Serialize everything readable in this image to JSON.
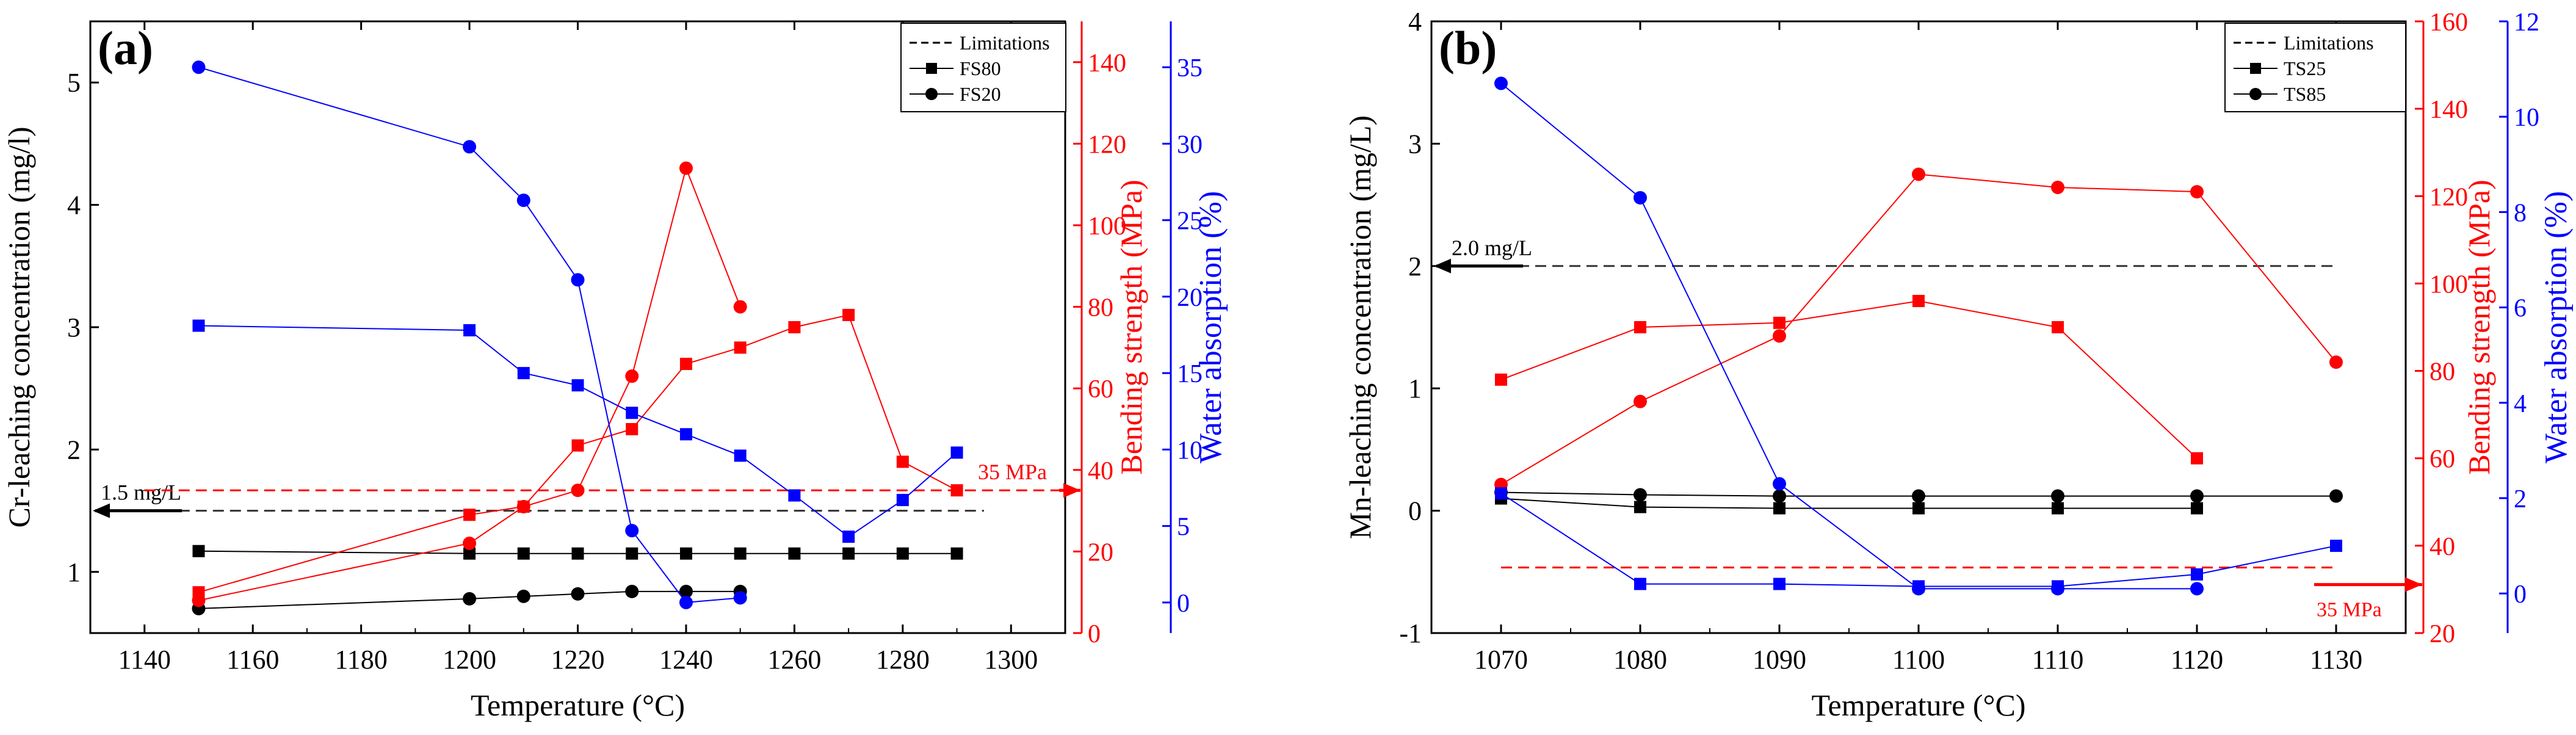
{
  "chart_data": [
    {
      "type": "line",
      "panel_label": "(a)",
      "xlabel": "Temperature (°C)",
      "ylabel": "Cr-leaching concentration (mg/l)",
      "ylabel_right1": "Bending strength (MPa)",
      "ylabel_right2": "Water absorption (%)",
      "xlim": [
        1130,
        1310
      ],
      "xticks": [
        "1140",
        "1160",
        "1180",
        "1200",
        "1220",
        "1240",
        "1260",
        "1280",
        "1300"
      ],
      "ylim": [
        0.5,
        5.5
      ],
      "yticks": [
        "1",
        "2",
        "3",
        "4",
        "5"
      ],
      "y2lim": [
        0,
        150
      ],
      "y2ticks": [
        "0",
        "20",
        "40",
        "60",
        "80",
        "100",
        "120",
        "140"
      ],
      "y3lim": [
        -2,
        38
      ],
      "y3ticks": [
        "0",
        "5",
        "10",
        "15",
        "20",
        "25",
        "30",
        "35"
      ],
      "limit_value": 1.5,
      "limit_label": "1.5 mg/L",
      "strength_limit_value": 35,
      "strength_limit_label": "35 MPa",
      "legend": [
        "Limitations",
        "FS80",
        "FS20"
      ],
      "series": [
        {
          "name": "FS80",
          "axis": "left",
          "color": "#000000",
          "marker": "square",
          "x": [
            1150,
            1200,
            1210,
            1220,
            1230,
            1240,
            1250,
            1260,
            1270,
            1280,
            1290
          ],
          "values": [
            1.17,
            1.15,
            1.15,
            1.15,
            1.15,
            1.15,
            1.15,
            1.15,
            1.15,
            1.15,
            1.15
          ]
        },
        {
          "name": "FS20",
          "axis": "left",
          "color": "#000000",
          "marker": "circle",
          "x": [
            1150,
            1200,
            1210,
            1220,
            1230,
            1240,
            1250
          ],
          "values": [
            0.7,
            0.78,
            0.8,
            0.82,
            0.84,
            0.84,
            0.84
          ]
        },
        {
          "name": "FS80 bending strength",
          "axis": "right1",
          "color": "#ff0000",
          "marker": "square",
          "x": [
            1150,
            1200,
            1210,
            1220,
            1230,
            1240,
            1250,
            1260,
            1270,
            1280,
            1290
          ],
          "values": [
            10,
            29,
            31,
            46,
            50,
            66,
            70,
            75,
            78,
            42,
            35
          ]
        },
        {
          "name": "FS20 bending strength",
          "axis": "right1",
          "color": "#ff0000",
          "marker": "circle",
          "x": [
            1150,
            1200,
            1210,
            1220,
            1230,
            1240,
            1250
          ],
          "values": [
            8,
            22,
            31,
            35,
            63,
            114,
            80
          ]
        },
        {
          "name": "FS80 water absorption",
          "axis": "right2",
          "color": "#0000ff",
          "marker": "square",
          "x": [
            1150,
            1200,
            1210,
            1220,
            1230,
            1240,
            1250,
            1260,
            1270,
            1280,
            1290
          ],
          "values": [
            18.1,
            17.8,
            15.0,
            14.2,
            12.4,
            11.0,
            9.6,
            7.0,
            4.3,
            6.7,
            9.8
          ]
        },
        {
          "name": "FS20 water absorption",
          "axis": "right2",
          "color": "#0000ff",
          "marker": "circle",
          "x": [
            1150,
            1200,
            1210,
            1220,
            1230,
            1240,
            1250
          ],
          "values": [
            35.0,
            29.8,
            26.3,
            21.1,
            4.7,
            0.0,
            0.3
          ]
        }
      ]
    },
    {
      "type": "line",
      "panel_label": "(b)",
      "xlabel": "Temperature (°C)",
      "ylabel": "Mn-leaching concentration (mg/L)",
      "ylabel_right1": "Bending strength (MPa)",
      "ylabel_right2": "Water absorption (%)",
      "xlim": [
        1065,
        1135
      ],
      "xticks": [
        "1070",
        "1080",
        "1090",
        "1100",
        "1110",
        "1120",
        "1130"
      ],
      "ylim": [
        -1,
        4
      ],
      "yticks": [
        "-1",
        "0",
        "1",
        "2",
        "3",
        "4"
      ],
      "y2lim": [
        20,
        160
      ],
      "y2ticks": [
        "20",
        "40",
        "60",
        "80",
        "100",
        "120",
        "140",
        "160"
      ],
      "y3lim": [
        -0.83,
        12
      ],
      "y3ticks": [
        "0",
        "2",
        "4",
        "6",
        "8",
        "10",
        "12"
      ],
      "limit_value": 2.0,
      "limit_label": "2.0 mg/L",
      "strength_limit_value": 35,
      "strength_limit_label": "35 MPa",
      "legend": [
        "Limitations",
        "TS25",
        "TS85"
      ],
      "series": [
        {
          "name": "TS25",
          "axis": "left",
          "color": "#000000",
          "marker": "square",
          "x": [
            1070,
            1080,
            1090,
            1100,
            1110,
            1120
          ],
          "values": [
            0.1,
            0.03,
            0.02,
            0.02,
            0.02,
            0.02
          ]
        },
        {
          "name": "TS85",
          "axis": "left",
          "color": "#000000",
          "marker": "circle",
          "x": [
            1070,
            1080,
            1090,
            1100,
            1110,
            1120,
            1130
          ],
          "values": [
            0.15,
            0.13,
            0.12,
            0.12,
            0.12,
            0.12,
            0.12
          ]
        },
        {
          "name": "TS25 bending strength",
          "axis": "right1",
          "color": "#ff0000",
          "marker": "square",
          "x": [
            1070,
            1080,
            1090,
            1100,
            1110,
            1120
          ],
          "values": [
            78,
            90,
            91,
            96,
            90,
            60
          ]
        },
        {
          "name": "TS85 bending strength",
          "axis": "right1",
          "color": "#ff0000",
          "marker": "circle",
          "x": [
            1070,
            1080,
            1090,
            1100,
            1110,
            1120,
            1130
          ],
          "values": [
            54,
            73,
            88,
            125,
            122,
            121,
            82
          ]
        },
        {
          "name": "TS25 water absorption",
          "axis": "right2",
          "color": "#0000ff",
          "marker": "square",
          "x": [
            1070,
            1080,
            1090,
            1100,
            1110,
            1120,
            1130
          ],
          "values": [
            2.1,
            0.2,
            0.2,
            0.15,
            0.15,
            0.4,
            1.0
          ]
        },
        {
          "name": "TS85 water absorption",
          "axis": "right2",
          "color": "#0000ff",
          "marker": "circle",
          "x": [
            1070,
            1080,
            1090,
            1100,
            1110,
            1120
          ],
          "values": [
            10.7,
            8.3,
            2.3,
            0.1,
            0.1,
            0.1
          ]
        }
      ]
    }
  ]
}
